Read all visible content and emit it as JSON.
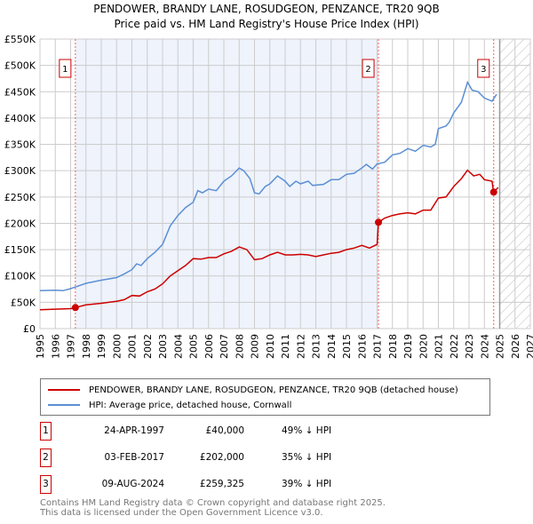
{
  "chart_data": {
    "type": "line",
    "title": "PENDOWER, BRANDY LANE, ROSUDGEON, PENZANCE, TR20 9QB",
    "subtitle": "Price paid vs. HM Land Registry's House Price Index (HPI)",
    "xlim": [
      1995,
      2027
    ],
    "ylim": [
      0,
      550000
    ],
    "x_ticks": [
      "1995",
      "1996",
      "1997",
      "1998",
      "1999",
      "2000",
      "2001",
      "2002",
      "2003",
      "2004",
      "2005",
      "2006",
      "2007",
      "2008",
      "2009",
      "2010",
      "2011",
      "2012",
      "2013",
      "2014",
      "2015",
      "2016",
      "2017",
      "2018",
      "2019",
      "2020",
      "2021",
      "2022",
      "2023",
      "2024",
      "2025",
      "2026",
      "2027"
    ],
    "y_ticks": [
      {
        "v": 0,
        "label": "£0"
      },
      {
        "v": 50000,
        "label": "£50K"
      },
      {
        "v": 100000,
        "label": "£100K"
      },
      {
        "v": 150000,
        "label": "£150K"
      },
      {
        "v": 200000,
        "label": "£200K"
      },
      {
        "v": 250000,
        "label": "£250K"
      },
      {
        "v": 300000,
        "label": "£300K"
      },
      {
        "v": 350000,
        "label": "£350K"
      },
      {
        "v": 400000,
        "label": "£400K"
      },
      {
        "v": 450000,
        "label": "£450K"
      },
      {
        "v": 500000,
        "label": "£500K"
      },
      {
        "v": 550000,
        "label": "£550K"
      }
    ],
    "grid": true,
    "shaded_period": [
      1997.31,
      2017.09
    ],
    "forecast_from": 2025.0,
    "series": [
      {
        "name": "PENDOWER, BRANDY LANE, ROSUDGEON, PENZANCE, TR20 9QB (detached house)",
        "color": "#cc0000",
        "x": [
          1995,
          1996,
          1997,
          1997.31,
          1998,
          1999,
          2000,
          2000.5,
          2001,
          2001.5,
          2002,
          2002.5,
          2003,
          2003.5,
          2004,
          2004.5,
          2005,
          2005.5,
          2006,
          2006.5,
          2007,
          2007.5,
          2008,
          2008.5,
          2009,
          2009.5,
          2010,
          2010.5,
          2011,
          2011.5,
          2012,
          2012.5,
          2013,
          2013.5,
          2014,
          2014.5,
          2015,
          2015.5,
          2016,
          2016.5,
          2017.0,
          2017.09,
          2017.5,
          2018,
          2018.5,
          2019,
          2019.5,
          2020,
          2020.5,
          2021,
          2021.5,
          2022,
          2022.5,
          2022.9,
          2023.3,
          2023.7,
          2024,
          2024.5,
          2024.6,
          2024.9
        ],
        "y": [
          36000,
          37000,
          38000,
          40000,
          45000,
          48000,
          52000,
          55000,
          63000,
          62000,
          70000,
          75000,
          85000,
          100000,
          110000,
          120000,
          133000,
          132000,
          135000,
          135000,
          142000,
          147000,
          155000,
          150000,
          131000,
          133000,
          140000,
          145000,
          140000,
          140000,
          141000,
          140000,
          137000,
          140000,
          143000,
          145000,
          150000,
          153000,
          158000,
          153000,
          160000,
          202000,
          210000,
          215000,
          218000,
          220000,
          218000,
          225000,
          225000,
          248000,
          250000,
          270000,
          285000,
          301000,
          290000,
          293000,
          283000,
          280000,
          259325,
          268000
        ]
      },
      {
        "name": "HPI: Average price, detached house, Cornwall",
        "color": "#5b8fd4",
        "x": [
          1995,
          1996,
          1996.5,
          1997,
          1997.3,
          1998,
          1999,
          2000,
          2000.5,
          2001,
          2001.3,
          2001.6,
          2002,
          2002.5,
          2003,
          2003.5,
          2004,
          2004.5,
          2005,
          2005.3,
          2005.6,
          2006,
          2006.5,
          2007,
          2007.5,
          2008,
          2008.3,
          2008.7,
          2009,
          2009.3,
          2009.7,
          2010,
          2010.5,
          2011,
          2011.3,
          2011.7,
          2012,
          2012.5,
          2012.8,
          2013.5,
          2014,
          2014.5,
          2015,
          2015.5,
          2016,
          2016.3,
          2016.7,
          2017,
          2017.5,
          2018,
          2018.5,
          2019,
          2019.5,
          2020,
          2020.5,
          2020.8,
          2021,
          2021.5,
          2021.7,
          2022,
          2022.5,
          2022.9,
          2023.2,
          2023.6,
          2024,
          2024.5,
          2024.8
        ],
        "y": [
          72000,
          73000,
          72000,
          76000,
          79000,
          86000,
          92000,
          97000,
          104000,
          112000,
          123000,
          120000,
          133000,
          145000,
          160000,
          195000,
          215000,
          230000,
          240000,
          262000,
          258000,
          265000,
          262000,
          280000,
          290000,
          305000,
          300000,
          285000,
          258000,
          256000,
          270000,
          275000,
          290000,
          280000,
          270000,
          280000,
          275000,
          280000,
          272000,
          274000,
          283000,
          283000,
          293000,
          295000,
          305000,
          312000,
          303000,
          313000,
          316000,
          330000,
          333000,
          342000,
          337000,
          348000,
          345000,
          350000,
          380000,
          385000,
          392000,
          410000,
          430000,
          468000,
          453000,
          450000,
          438000,
          432000,
          445000
        ]
      }
    ],
    "sales": [
      {
        "label": "1",
        "x": 1997.31,
        "y": 40000,
        "date": "24-APR-1997",
        "price": "£40,000",
        "hpi": "49% ↓ HPI"
      },
      {
        "label": "2",
        "x": 2017.09,
        "y": 202000,
        "date": "03-FEB-2017",
        "price": "£202,000",
        "hpi": "35% ↓ HPI"
      },
      {
        "label": "3",
        "x": 2024.61,
        "y": 259325,
        "date": "09-AUG-2024",
        "price": "£259,325",
        "hpi": "39% ↓ HPI"
      }
    ]
  },
  "footer": {
    "line1": "Contains HM Land Registry data © Crown copyright and database right 2025.",
    "line2": "This data is licensed under the Open Government Licence v3.0."
  }
}
